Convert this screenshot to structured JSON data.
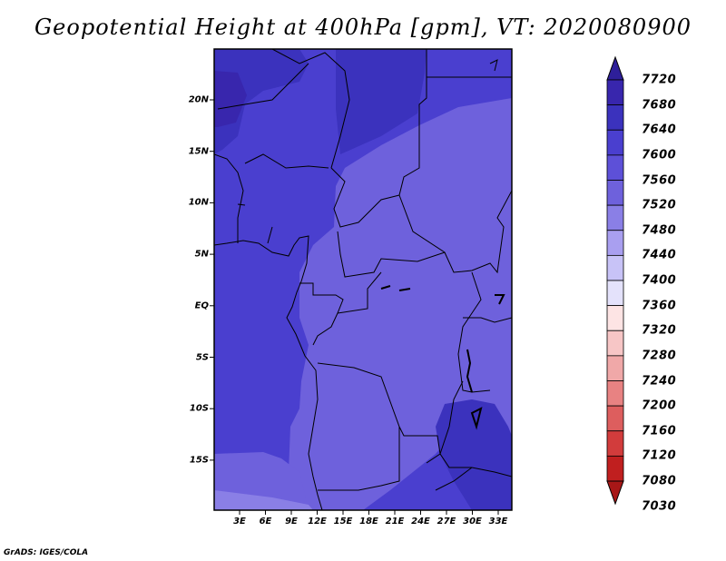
{
  "title": "Geopotential Height at 400hPa [gpm], VT: 2020080900",
  "footer": "GrADS: IGES/COLA",
  "map": {
    "y_ticks": [
      "20N",
      "15N",
      "10N",
      "5N",
      "EQ",
      "5S",
      "10S",
      "15S"
    ],
    "x_ticks": [
      "3E",
      "6E",
      "9E",
      "12E",
      "15E",
      "18E",
      "21E",
      "24E",
      "27E",
      "30E",
      "33E"
    ]
  },
  "colorbar": {
    "labels": [
      "7720",
      "7680",
      "7640",
      "7600",
      "7560",
      "7520",
      "7480",
      "7440",
      "7400",
      "7360",
      "7320",
      "7280",
      "7240",
      "7200",
      "7160",
      "7120",
      "7080",
      "7030"
    ],
    "colors": [
      "#2e1f9a",
      "#3826ad",
      "#3b32bd",
      "#4a3fcf",
      "#5d50d8",
      "#6e61dc",
      "#8a7fe6",
      "#a99ff0",
      "#c8c3f7",
      "#e4e2fb",
      "#fde4e4",
      "#f7c6c6",
      "#f0a8a8",
      "#e88282",
      "#dd5e5e",
      "#d23c3c",
      "#c01f1f",
      "#a81717"
    ]
  }
}
